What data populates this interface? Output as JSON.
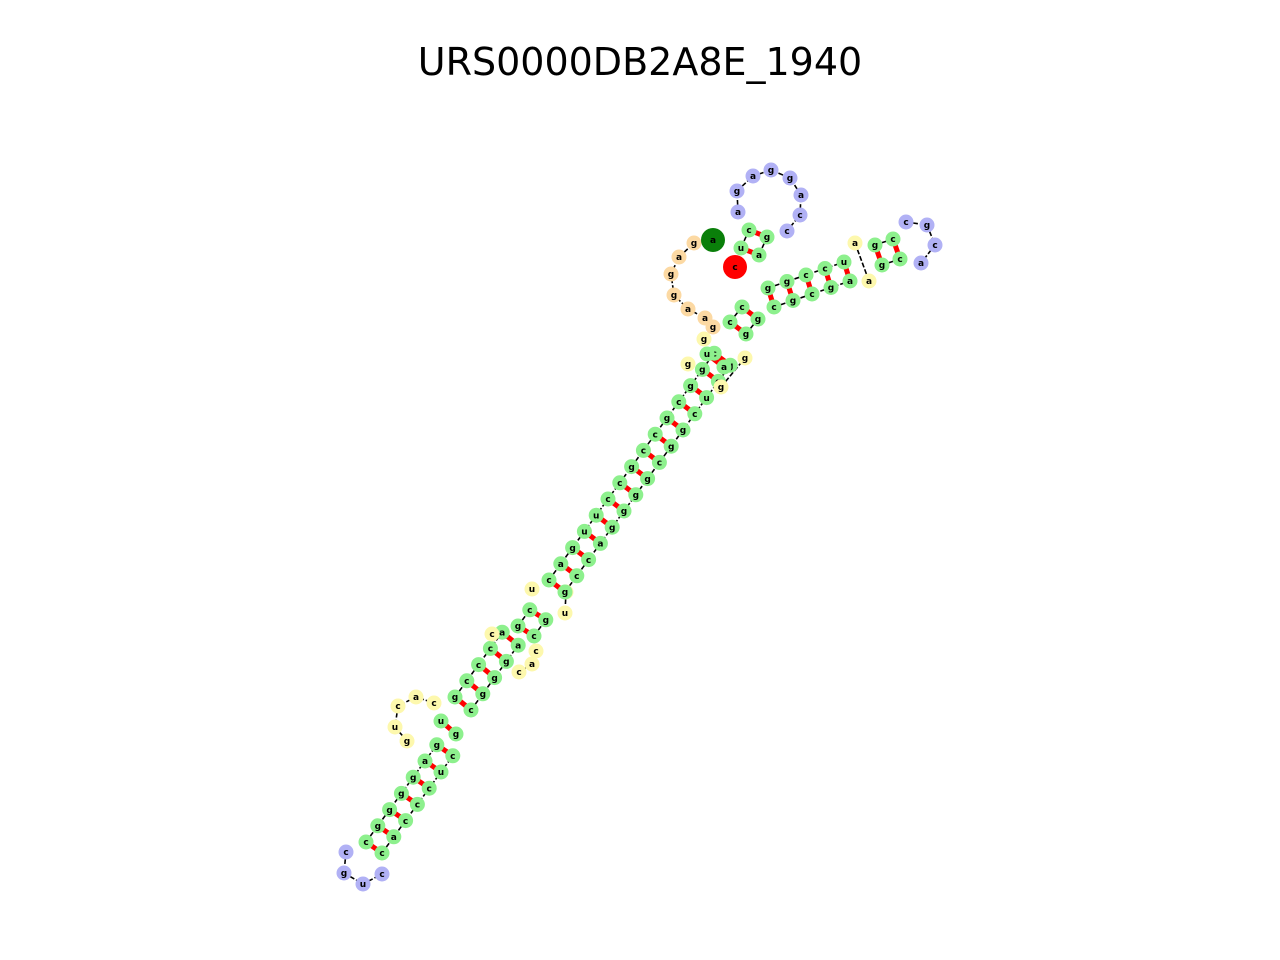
{
  "title": "URS0000DB2A8E_1940",
  "colors": {
    "stem": "#8df08d",
    "hairpin": "#b1b1f5",
    "interior": "#fdf8ad",
    "exterior": "#fcd9a3",
    "pair_bond": "#ff0000",
    "backbone": "#000000",
    "start_marker": "#0a7f0a",
    "end_marker": "#ff0000"
  },
  "legend_markers": [
    {
      "name": "start",
      "label": "a"
    },
    {
      "name": "end",
      "label": "c"
    }
  ],
  "structure": {
    "exterior_loop": [
      "g",
      "g",
      "a",
      "g",
      "g",
      "a",
      "a",
      "g"
    ],
    "helix1": {
      "five": [
        "c",
        "c"
      ],
      "three": [
        "g",
        "g"
      ]
    },
    "bulge1": [
      "g"
    ],
    "helix2": {
      "five": [
        "u",
        "a"
      ],
      "three": [
        "a",
        "a"
      ]
    },
    "interior1_5p": [
      "g"
    ],
    "interior1_3p": [
      "g",
      "g"
    ],
    "helix3": {
      "five": [
        "c",
        "a",
        "g",
        "u",
        "u",
        "c",
        "c",
        "g",
        "c",
        "c",
        "g",
        "c",
        "g",
        "g",
        "c"
      ],
      "three": [
        "g",
        "c",
        "c",
        "a",
        "g",
        "g",
        "g",
        "g",
        "c",
        "g",
        "g",
        "c",
        "u",
        "g",
        "g"
      ]
    },
    "interior2_5p": [
      "u"
    ],
    "interior2_3p": [
      "c",
      "u"
    ],
    "helix4": {
      "five": [
        "g",
        "c"
      ],
      "three": [
        "c",
        "g"
      ]
    },
    "interior3_5p": [
      "c"
    ],
    "interior3_3p": [
      "c",
      "a",
      "c"
    ],
    "helix5": {
      "five": [
        "g",
        "c",
        "c",
        "c",
        "a"
      ],
      "three": [
        "c",
        "g",
        "g",
        "g",
        "a"
      ]
    },
    "multiloop_branch": {
      "stem": {
        "five": [
          "u"
        ],
        "three": [
          "g"
        ]
      },
      "loop": [
        "g",
        "u",
        "c",
        "a",
        "c"
      ]
    },
    "helix6": {
      "five": [
        "c",
        "g",
        "g",
        "g",
        "g",
        "a",
        "g"
      ],
      "three": [
        "c",
        "a",
        "c",
        "c",
        "c",
        "u",
        "c"
      ]
    },
    "hairpin1": [
      "c",
      "g",
      "u",
      "c"
    ],
    "helix7": {
      "five": [
        "c",
        "u"
      ],
      "three": [
        "g",
        "a"
      ]
    },
    "hairpin2": [
      "a",
      "g",
      "a",
      "g",
      "g",
      "a",
      "c",
      "c"
    ],
    "helix8": {
      "five": [
        "g",
        "g",
        "c",
        "c",
        "u"
      ],
      "three": [
        "c",
        "g",
        "c",
        "g",
        "a"
      ]
    },
    "interior4": [
      "a",
      "a"
    ],
    "helix9": {
      "five": [
        "g",
        "c"
      ],
      "three": [
        "g",
        "c"
      ]
    },
    "hairpin3": [
      "c",
      "g",
      "c",
      "a"
    ]
  }
}
